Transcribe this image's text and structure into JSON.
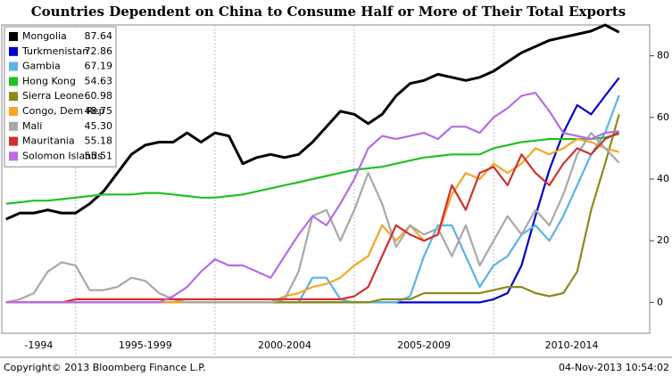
{
  "chart_data": {
    "type": "line",
    "title": "Countries Dependent on China to Consume Half or More of Their Total Exports",
    "copyright": "Copyright© 2013 Bloomberg Finance L.P.",
    "timestamp": "04-Nov-2013 10:54:02",
    "x": [
      1992.5,
      1993,
      1993.5,
      1994,
      1994.5,
      1995,
      1995.5,
      1996,
      1996.5,
      1997,
      1997.5,
      1998,
      1998.5,
      1999,
      1999.5,
      2000,
      2000.5,
      2001,
      2001.5,
      2002,
      2002.5,
      2003,
      2003.5,
      2004,
      2004.5,
      2005,
      2005.5,
      2006,
      2006.5,
      2007,
      2007.5,
      2008,
      2008.5,
      2009,
      2009.5,
      2010,
      2010.5,
      2011,
      2011.5,
      2012,
      2012.5,
      2013,
      2013.5,
      2014,
      2014.5
    ],
    "xlim": [
      1992.35,
      2015.6
    ],
    "xticks": [
      1995,
      2000,
      2005,
      2010
    ],
    "x_periods": [
      "-1994",
      "1995-1999",
      "2000-2004",
      "2005-2009",
      "2010-2014"
    ],
    "ylim": [
      -10,
      90
    ],
    "yticks": [
      0,
      20,
      40,
      60,
      80
    ],
    "series": [
      {
        "name": "Mongolia",
        "color": "#000000",
        "last_label": "87.64",
        "values": [
          27,
          29,
          29,
          30,
          29,
          29,
          32,
          36,
          42,
          48,
          51,
          52,
          52,
          55,
          52,
          55,
          54,
          45,
          47,
          48,
          47,
          48,
          52,
          57,
          62,
          61,
          58,
          61,
          67,
          71,
          72,
          74,
          73,
          72,
          73,
          75,
          78,
          81,
          83,
          85,
          86,
          87,
          88,
          90,
          87.64
        ]
      },
      {
        "name": "Turkmenistan",
        "color": "#0000cc",
        "last_label": "72.86",
        "values": [
          0,
          0,
          0,
          0,
          0,
          0,
          0,
          0,
          0,
          0,
          0,
          0,
          0,
          0,
          0,
          0,
          0,
          0,
          0,
          0,
          0,
          0,
          0,
          0,
          0,
          0,
          0,
          0,
          0,
          0,
          0,
          0,
          0,
          0,
          0,
          1,
          3,
          12,
          28,
          43,
          55,
          64,
          61,
          67,
          72.86
        ]
      },
      {
        "name": "Gambia",
        "color": "#5ab4e5",
        "last_label": "67.19",
        "values": [
          0,
          0,
          0,
          0,
          0,
          0,
          0,
          0,
          0,
          0,
          0,
          0,
          0,
          0,
          0,
          0,
          0,
          0,
          0,
          0,
          0,
          0,
          8,
          8,
          1,
          0,
          0,
          0,
          0,
          2,
          15,
          25,
          25,
          15,
          5,
          12,
          15,
          22,
          25,
          20,
          28,
          38,
          48,
          55,
          67.19
        ]
      },
      {
        "name": "Hong Kong",
        "color": "#22c022",
        "last_label": "54.63",
        "values": [
          32,
          32.5,
          33,
          33,
          33.5,
          34,
          34.5,
          35,
          35,
          35,
          35.5,
          35.5,
          35,
          34.5,
          34,
          34,
          34.5,
          35,
          36,
          37,
          38,
          39,
          40,
          41,
          42,
          43,
          43.5,
          44,
          45,
          46,
          47,
          47.5,
          48,
          48,
          48,
          50,
          51,
          52,
          52.5,
          53,
          53,
          53,
          53,
          53.5,
          54.63
        ]
      },
      {
        "name": "Sierra Leone",
        "color": "#8b8b1a",
        "last_label": "60.98",
        "values": [
          0,
          0,
          0,
          0,
          0,
          0,
          0,
          0,
          0,
          0,
          0,
          0,
          0,
          0,
          0,
          0,
          0,
          0,
          0,
          0,
          0,
          0,
          0,
          0,
          0,
          0,
          0,
          1,
          1,
          1,
          3,
          3,
          3,
          3,
          3,
          4,
          5,
          5,
          3,
          2,
          3,
          10,
          30,
          45,
          60.98
        ]
      },
      {
        "name": "Congo, Dem Rep",
        "color": "#f5a623",
        "last_label": "48.75",
        "values": [
          0,
          0,
          0,
          0,
          0,
          0,
          0,
          0,
          0,
          0,
          0,
          0,
          0,
          0,
          0,
          0,
          0,
          0,
          0,
          0,
          2,
          3,
          5,
          6,
          8,
          12,
          15,
          25,
          20,
          25,
          20,
          22,
          35,
          42,
          40,
          45,
          42,
          45,
          50,
          48,
          50,
          53,
          52,
          50,
          48.75
        ]
      },
      {
        "name": "Mali",
        "color": "#a8a8a8",
        "last_label": "45.30",
        "values": [
          0,
          1,
          3,
          10,
          13,
          12,
          4,
          4,
          5,
          8,
          7,
          3,
          1,
          0,
          0,
          0,
          0,
          0,
          0,
          0,
          1,
          10,
          28,
          30,
          20,
          30,
          42,
          32,
          18,
          25,
          22,
          24,
          15,
          25,
          12,
          20,
          28,
          22,
          30,
          25,
          35,
          48,
          55,
          50,
          45.3
        ]
      },
      {
        "name": "Mauritania",
        "color": "#d03030",
        "last_label": "55.18",
        "values": [
          0,
          0,
          0,
          0,
          0,
          1,
          1,
          1,
          1,
          1,
          1,
          1,
          1,
          1,
          1,
          1,
          1,
          1,
          1,
          1,
          1,
          1,
          1,
          1,
          1,
          2,
          5,
          15,
          25,
          22,
          20,
          22,
          38,
          30,
          42,
          44,
          38,
          48,
          42,
          38,
          45,
          50,
          48,
          53,
          55.18
        ]
      },
      {
        "name": "Solomon Islands",
        "color": "#b86be8",
        "last_label": "55.51",
        "values": [
          0,
          0,
          0,
          0,
          0,
          0,
          0,
          0,
          0,
          0,
          0,
          0,
          2,
          5,
          10,
          14,
          12,
          12,
          10,
          8,
          15,
          22,
          28,
          25,
          32,
          40,
          50,
          54,
          53,
          54,
          55,
          53,
          57,
          57,
          55,
          60,
          63,
          67,
          68,
          62,
          55,
          54,
          53,
          55,
          55.51
        ]
      }
    ]
  }
}
